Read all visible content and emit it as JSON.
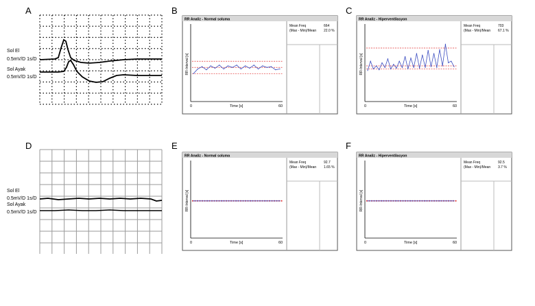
{
  "panels": {
    "A": {
      "letter": "A",
      "traces": [
        {
          "name": "Sol El",
          "scale": "0.5mV/D 1s/D"
        },
        {
          "name": "Sol Ayak",
          "scale": "0.5mV/D 1s/D"
        }
      ]
    },
    "D": {
      "letter": "D",
      "traces": [
        {
          "name": "Sol El",
          "scale": "0.5mV/D 1s/D"
        },
        {
          "name": "Sol Ayak",
          "scale": "0.5mV/D 1s/D"
        }
      ]
    }
  },
  "rr_windows": [
    {
      "id": "B",
      "letter": "B",
      "title": "RR Analiz - Normal soluma",
      "stats": [
        {
          "label": "Mean Freq",
          "value": "664"
        },
        {
          "label": "(Max - Min)/Mean",
          "value": "22.0 %"
        }
      ]
    },
    {
      "id": "C",
      "letter": "C",
      "title": "RR Analiz - Hiperventilasyon",
      "stats": [
        {
          "label": "Mean Freq",
          "value": "703"
        },
        {
          "label": "(Max - Min)/Mean",
          "value": "67.1 %"
        }
      ]
    },
    {
      "id": "E",
      "letter": "E",
      "title": "RR Analiz - Normal soluma",
      "stats": [
        {
          "label": "Mean Freq",
          "value": "92.7"
        },
        {
          "label": "(Max - Min)/Mean",
          "value": "1.65 %"
        }
      ]
    },
    {
      "id": "F",
      "letter": "F",
      "title": "RR Analiz - Hiperventilasyon",
      "stats": [
        {
          "label": "Mean Freq",
          "value": "92.5"
        },
        {
          "label": "(Max - Min)/Mean",
          "value": "3.7 %"
        }
      ]
    }
  ],
  "chart_data": [
    {
      "id": "B",
      "type": "line",
      "xlabel": "Time [s]",
      "ylabel": "RR-Interval [s]",
      "xlim": [
        0,
        60
      ],
      "x_ticks": [
        "0",
        "60"
      ],
      "ylim": [
        0,
        1
      ],
      "x": [
        0,
        3,
        6,
        9,
        12,
        15,
        18,
        21,
        24,
        27,
        30,
        33,
        36,
        39,
        42,
        45,
        48,
        51,
        54,
        57,
        60
      ],
      "values": [
        0.36,
        0.42,
        0.45,
        0.41,
        0.46,
        0.43,
        0.47,
        0.42,
        0.46,
        0.44,
        0.47,
        0.42,
        0.46,
        0.43,
        0.47,
        0.42,
        0.46,
        0.44,
        0.45,
        0.41,
        0.42
      ],
      "mean": 0.44,
      "upper_limit": 0.52,
      "lower_limit": 0.36
    },
    {
      "id": "C",
      "type": "line",
      "xlabel": "Time [s]",
      "ylabel": "RR-Interval [s]",
      "xlim": [
        0,
        60
      ],
      "x_ticks": [
        "0",
        "60"
      ],
      "ylim": [
        0,
        1
      ],
      "x": [
        0,
        2,
        4,
        6,
        8,
        10,
        12,
        14,
        16,
        18,
        20,
        22,
        24,
        26,
        28,
        30,
        32,
        34,
        36,
        38,
        40,
        42,
        44,
        46,
        48,
        50,
        52,
        54,
        56,
        58,
        60
      ],
      "values": [
        0.4,
        0.52,
        0.42,
        0.46,
        0.41,
        0.5,
        0.44,
        0.55,
        0.42,
        0.48,
        0.43,
        0.52,
        0.44,
        0.58,
        0.42,
        0.56,
        0.44,
        0.62,
        0.43,
        0.6,
        0.44,
        0.66,
        0.45,
        0.62,
        0.44,
        0.67,
        0.46,
        0.74,
        0.5,
        0.52,
        0.45
      ],
      "mean": 0.46,
      "upper_limit": 0.69,
      "lower_limit": 0.42
    },
    {
      "id": "E",
      "type": "line",
      "xlabel": "Time [s]",
      "ylabel": "RR-Interval [s]",
      "xlim": [
        0,
        60
      ],
      "x_ticks": [
        "0",
        "60"
      ],
      "ylim": [
        0,
        1
      ],
      "x": [
        0,
        10,
        20,
        30,
        40,
        50,
        60
      ],
      "values": [
        0.48,
        0.48,
        0.48,
        0.48,
        0.48,
        0.48,
        0.48
      ],
      "mean": 0.48,
      "upper_limit": 0.485,
      "lower_limit": 0.475
    },
    {
      "id": "F",
      "type": "line",
      "xlabel": "Time [s]",
      "ylabel": "RR-Interval [s]",
      "xlim": [
        0,
        60
      ],
      "x_ticks": [
        "0",
        "60"
      ],
      "ylim": [
        0,
        1
      ],
      "x": [
        0,
        10,
        20,
        30,
        40,
        50,
        60
      ],
      "values": [
        0.48,
        0.48,
        0.48,
        0.48,
        0.48,
        0.48,
        0.48
      ],
      "mean": 0.48,
      "upper_limit": 0.485,
      "lower_limit": 0.475
    }
  ]
}
